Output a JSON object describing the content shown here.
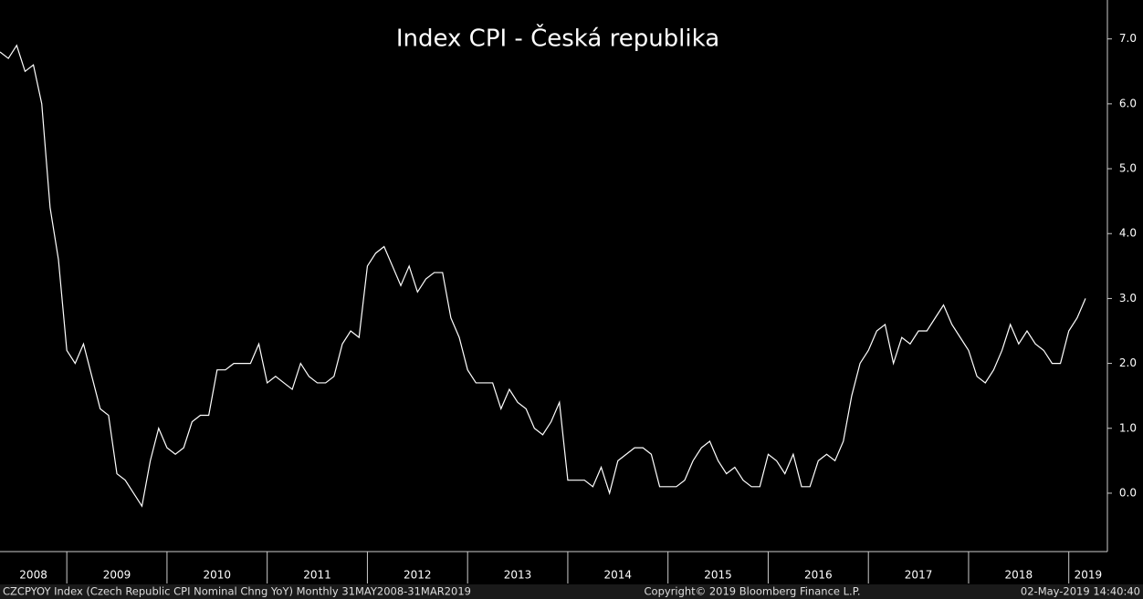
{
  "chart_data": {
    "type": "line",
    "title": "Index CPI - Česká republika",
    "x_labels": [
      "2008",
      "2009",
      "2010",
      "2011",
      "2012",
      "2013",
      "2014",
      "2015",
      "2016",
      "2017",
      "2018",
      "2019"
    ],
    "color": "#ffffff",
    "values": [
      6.8,
      6.7,
      6.9,
      6.5,
      6.6,
      6.0,
      4.4,
      3.6,
      2.2,
      2.0,
      2.3,
      1.8,
      1.3,
      1.2,
      0.3,
      0.2,
      0.0,
      -0.2,
      0.5,
      1.0,
      0.7,
      0.6,
      0.7,
      1.1,
      1.2,
      1.2,
      1.9,
      1.9,
      2.0,
      2.0,
      2.0,
      2.3,
      1.7,
      1.8,
      1.7,
      1.6,
      2.0,
      1.8,
      1.7,
      1.7,
      1.8,
      2.3,
      2.5,
      2.4,
      3.5,
      3.7,
      3.8,
      3.5,
      3.2,
      3.5,
      3.1,
      3.3,
      3.4,
      3.4,
      2.7,
      2.4,
      1.9,
      1.7,
      1.7,
      1.7,
      1.3,
      1.6,
      1.4,
      1.3,
      1.0,
      0.9,
      1.1,
      1.4,
      0.2,
      0.2,
      0.2,
      0.1,
      0.4,
      0.0,
      0.5,
      0.6,
      0.7,
      0.7,
      0.6,
      0.1,
      0.1,
      0.1,
      0.2,
      0.5,
      0.7,
      0.8,
      0.5,
      0.3,
      0.4,
      0.2,
      0.1,
      0.1,
      0.6,
      0.5,
      0.3,
      0.6,
      0.1,
      0.1,
      0.5,
      0.6,
      0.5,
      0.8,
      1.5,
      2.0,
      2.2,
      2.5,
      2.6,
      2.0,
      2.4,
      2.3,
      2.5,
      2.5,
      2.7,
      2.9,
      2.6,
      2.4,
      2.2,
      1.8,
      1.7,
      1.9,
      2.2,
      2.6,
      2.3,
      2.5,
      2.3,
      2.2,
      2.0,
      2.0,
      2.5,
      2.7,
      3.0
    ],
    "ylim": [
      -0.9,
      7.6
    ],
    "yticks": [
      {
        "value": 0,
        "label": "0.0"
      },
      {
        "value": 1,
        "label": "1.0"
      },
      {
        "value": 2,
        "label": "2.0"
      },
      {
        "value": 3,
        "label": "3.0"
      },
      {
        "value": 4,
        "label": "4.0"
      },
      {
        "value": 5,
        "label": "5.0"
      },
      {
        "value": 6,
        "label": "6.0"
      },
      {
        "value": 7,
        "label": "7.0"
      }
    ],
    "footer_left": "CZCPYOY Index (Czech Republic CPI Nominal Chng YoY)  Monthly 31MAY2008-31MAR2019",
    "footer_center": "Copyright© 2019 Bloomberg Finance L.P.",
    "footer_right": "02-May-2019 14:40:40"
  }
}
